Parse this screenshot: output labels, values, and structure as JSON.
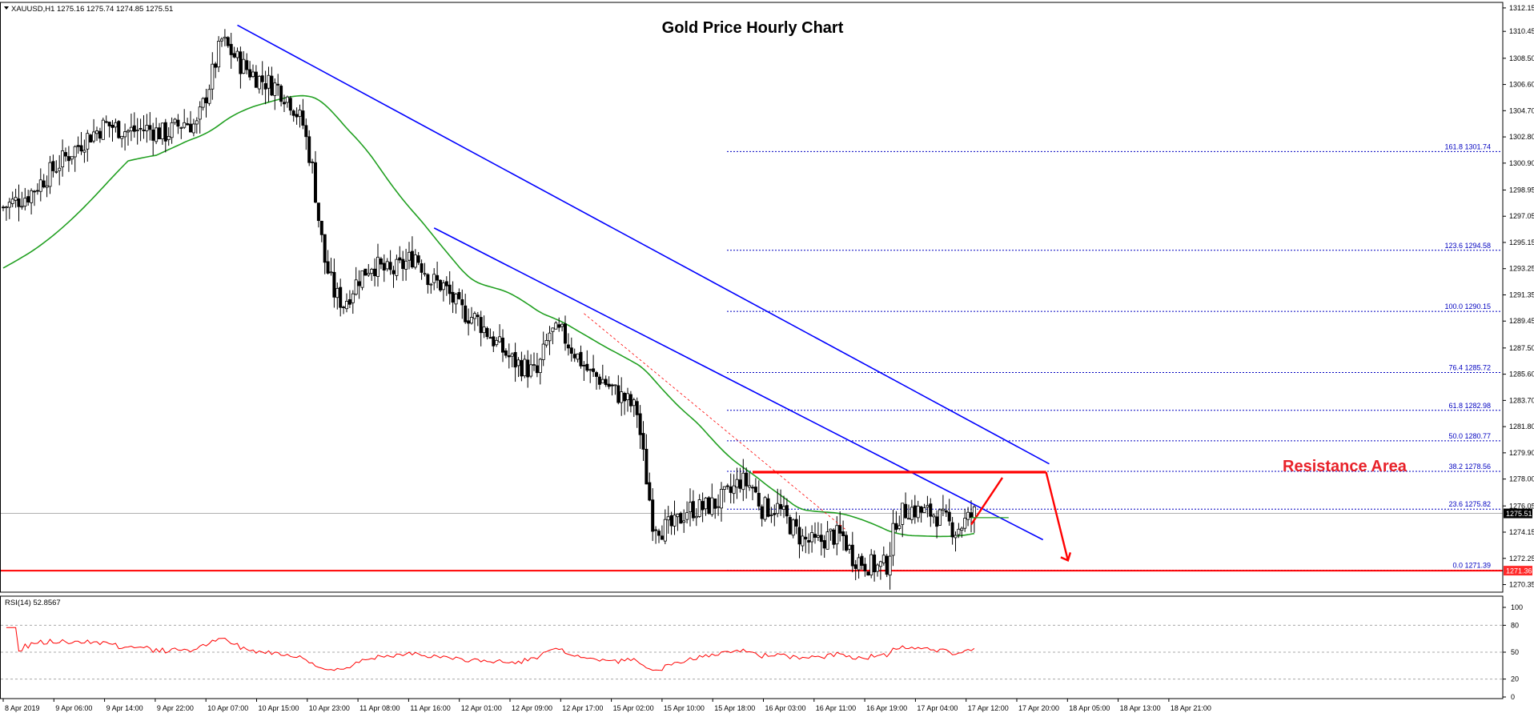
{
  "chart_data": {
    "type": "candlestick",
    "symbol_line": "XAUUSD,H1  1275.16 1275.74 1274.85 1275.51",
    "title": "Gold Price Hourly Chart",
    "price_axis": {
      "ylim": [
        1270.0,
        1312.5
      ],
      "ticks": [
        "1312.15",
        "1310.45",
        "1308.50",
        "1306.60",
        "1304.70",
        "1302.80",
        "1300.90",
        "1298.95",
        "1297.05",
        "1295.15",
        "1293.25",
        "1291.35",
        "1289.45",
        "1287.50",
        "1285.60",
        "1283.70",
        "1281.80",
        "1279.90",
        "1278.00",
        "1276.05",
        "1274.15",
        "1272.25",
        "1270.35"
      ]
    },
    "current_price_label": "1275.51",
    "support_label": "1271.36",
    "support_price": 1271.36,
    "fib_levels": [
      {
        "label": "161.8 1301.74",
        "value": 1301.74
      },
      {
        "label": "123.6 1294.58",
        "value": 1294.58
      },
      {
        "label": "100.0 1290.15",
        "value": 1290.15
      },
      {
        "label": "76.4 1285.72",
        "value": 1285.72
      },
      {
        "label": "61.8 1282.98",
        "value": 1282.98
      },
      {
        "label": "50.0 1280.77",
        "value": 1280.77
      },
      {
        "label": "38.2 1278.56",
        "value": 1278.56
      },
      {
        "label": "23.6 1275.82",
        "value": 1275.82
      },
      {
        "label": "0.0 1271.39",
        "value": 1271.39
      }
    ],
    "annotation": "Resistance Area",
    "resistance_price": 1278.5,
    "x_labels": [
      "8 Apr 2019",
      "9 Apr 06:00",
      "9 Apr 14:00",
      "9 Apr 22:00",
      "10 Apr 07:00",
      "10 Apr 15:00",
      "10 Apr 23:00",
      "11 Apr 08:00",
      "11 Apr 16:00",
      "12 Apr 01:00",
      "12 Apr 09:00",
      "12 Apr 17:00",
      "15 Apr 02:00",
      "15 Apr 10:00",
      "15 Apr 18:00",
      "16 Apr 03:00",
      "16 Apr 11:00",
      "16 Apr 19:00",
      "17 Apr 04:00",
      "17 Apr 12:00",
      "17 Apr 20:00",
      "18 Apr 05:00",
      "18 Apr 13:00",
      "18 Apr 21:00"
    ],
    "rsi": {
      "label": "RSI(14) 52.8567",
      "ylim": [
        0,
        100
      ],
      "ticks": [
        "100",
        "80",
        "50",
        "20",
        "0"
      ],
      "levels": [
        80,
        50,
        20
      ]
    },
    "colors": {
      "trendline": "#0000ff",
      "ma": "#22a022",
      "resistance": "#ff0000",
      "rsi": "#ff0000",
      "fib": "#0000c0"
    }
  }
}
